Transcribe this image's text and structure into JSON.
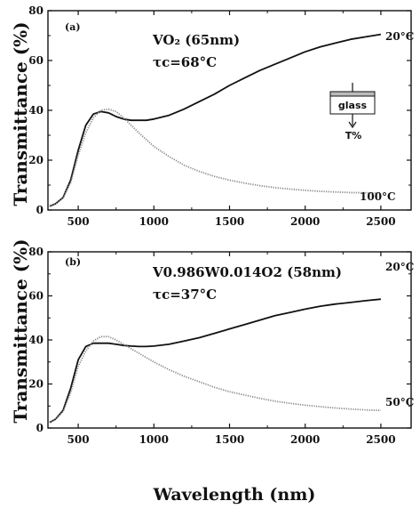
{
  "chart_data": [
    {
      "type": "line",
      "panel_label": "(a)",
      "annotation_line1": "VO₂ (65nm)",
      "annotation_line2": "τc=68°C",
      "xlabel": "",
      "ylabel": "Transmittance (%)",
      "xlim": [
        300,
        2700
      ],
      "ylim": [
        0,
        80
      ],
      "xticks": [
        500,
        1000,
        1500,
        2000,
        2500
      ],
      "yticks": [
        0,
        20,
        40,
        60,
        80
      ],
      "inset": {
        "glass_label": "glass",
        "t_label": "T%"
      },
      "series": [
        {
          "name": "20°C",
          "color": "#111111",
          "x": [
            310,
            350,
            400,
            450,
            500,
            550,
            600,
            650,
            700,
            750,
            800,
            850,
            900,
            950,
            1000,
            1100,
            1200,
            1300,
            1400,
            1500,
            1600,
            1700,
            1800,
            1900,
            2000,
            2100,
            2200,
            2300,
            2400,
            2500
          ],
          "y": [
            1.5,
            2.5,
            5,
            12,
            24,
            34,
            38.5,
            39.5,
            39,
            37.5,
            36.5,
            36,
            36,
            36,
            36.5,
            38,
            40.5,
            43.5,
            46.5,
            50,
            53,
            56,
            58.5,
            61,
            63.5,
            65.5,
            67,
            68.5,
            69.5,
            70.5
          ]
        },
        {
          "name": "100°C",
          "color": "#888888",
          "x": [
            310,
            350,
            400,
            450,
            500,
            550,
            600,
            650,
            700,
            750,
            800,
            850,
            900,
            1000,
            1100,
            1200,
            1300,
            1400,
            1500,
            1600,
            1700,
            1800,
            1900,
            2000,
            2100,
            2200,
            2300,
            2400,
            2500
          ],
          "y": [
            1.5,
            2.5,
            5,
            11,
            22,
            31,
            37,
            40,
            40.5,
            39.5,
            37,
            34,
            31,
            25.5,
            21.5,
            18,
            15.5,
            13.5,
            12,
            10.8,
            9.8,
            9,
            8.4,
            7.9,
            7.5,
            7.2,
            7,
            6.9,
            6.8
          ]
        }
      ]
    },
    {
      "type": "line",
      "panel_label": "(b)",
      "annotation_line1": "V0.986W0.014O2 (58nm)",
      "annotation_line2": "τc=37°C",
      "xlabel": "Wavelength (nm)",
      "ylabel": "Transmittance (%)",
      "xlim": [
        300,
        2700
      ],
      "ylim": [
        0,
        80
      ],
      "xticks": [
        500,
        1000,
        1500,
        2000,
        2500
      ],
      "yticks": [
        0,
        20,
        40,
        60,
        80
      ],
      "series": [
        {
          "name": "20°C",
          "color": "#111111",
          "x": [
            310,
            350,
            400,
            450,
            500,
            550,
            600,
            650,
            700,
            750,
            800,
            850,
            900,
            950,
            1000,
            1100,
            1200,
            1300,
            1400,
            1500,
            1600,
            1700,
            1800,
            1900,
            2000,
            2100,
            2200,
            2300,
            2400,
            2500
          ],
          "y": [
            2.5,
            4,
            8,
            18,
            31,
            37,
            38.5,
            38.5,
            38.5,
            38,
            37.5,
            37.2,
            37,
            37,
            37.2,
            38,
            39.5,
            41,
            43,
            45,
            47,
            49,
            51,
            52.5,
            54,
            55.3,
            56.3,
            57,
            57.8,
            58.5
          ]
        },
        {
          "name": "50°C",
          "color": "#888888",
          "x": [
            310,
            350,
            400,
            450,
            500,
            550,
            600,
            650,
            700,
            750,
            800,
            850,
            900,
            1000,
            1100,
            1200,
            1300,
            1400,
            1500,
            1600,
            1700,
            1800,
            1900,
            2000,
            2100,
            2200,
            2300,
            2400,
            2500
          ],
          "y": [
            2.5,
            4,
            7.5,
            16,
            28,
            35,
            39.5,
            41.5,
            41.5,
            40,
            38,
            36,
            34,
            30,
            26.5,
            23.5,
            21,
            18.5,
            16.5,
            15,
            13.5,
            12.2,
            11.2,
            10.4,
            9.7,
            9.1,
            8.6,
            8.2,
            8
          ]
        }
      ]
    }
  ]
}
